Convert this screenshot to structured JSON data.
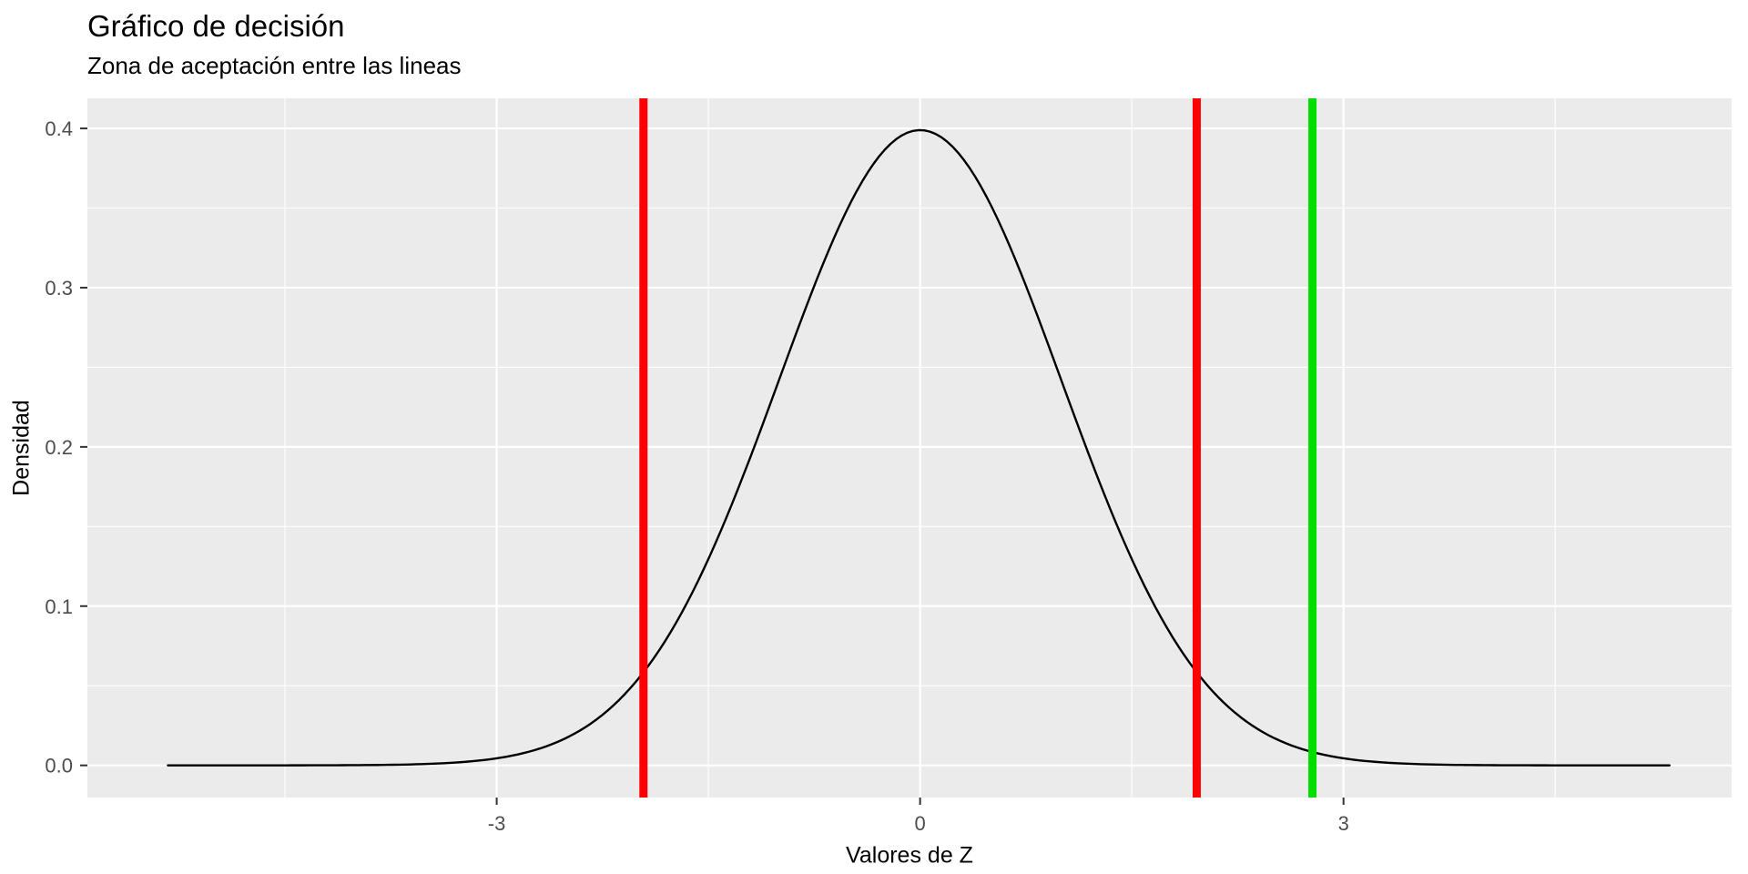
{
  "chart_data": {
    "type": "line",
    "title": "Gráfico de decisión",
    "subtitle": "Zona de aceptación entre las lineas",
    "xlabel": "Valores de Z",
    "ylabel": "Densidad",
    "panel_background": "#ebebeb",
    "grid_color": "#ffffff",
    "curve_color": "#000000",
    "axis_text_color": "#4d4d4d",
    "tick_mark_color": "#333333",
    "legend": "none",
    "grid": "on",
    "xlim": [
      -5.9,
      5.75
    ],
    "ylim": [
      -0.0202,
      0.4189
    ],
    "x_ticks": [
      -3,
      0,
      3
    ],
    "x_tick_labels": [
      "-3",
      "0",
      "3"
    ],
    "x_minor_ticks": [
      -4.5,
      -1.5,
      1.5,
      4.5
    ],
    "y_ticks": [
      0.0,
      0.1,
      0.2,
      0.3,
      0.4
    ],
    "y_tick_labels": [
      "0.0",
      "0.1",
      "0.2",
      "0.3",
      "0.4"
    ],
    "y_minor_ticks": [
      0.05,
      0.15,
      0.25,
      0.35
    ],
    "curve": {
      "name": "standard-normal-density",
      "distribution": "normal",
      "mean": 0,
      "sd": 1,
      "x_min": -5.33,
      "x_max": 5.33,
      "peak_x": 0,
      "peak_density": 0.3989
    },
    "vlines": [
      {
        "x": -1.96,
        "color": "#ff0000",
        "name": "critical-value-lower"
      },
      {
        "x": 1.96,
        "color": "#ff0000",
        "name": "critical-value-upper"
      },
      {
        "x": 2.78,
        "color": "#00dd00",
        "name": "test-statistic"
      }
    ]
  }
}
